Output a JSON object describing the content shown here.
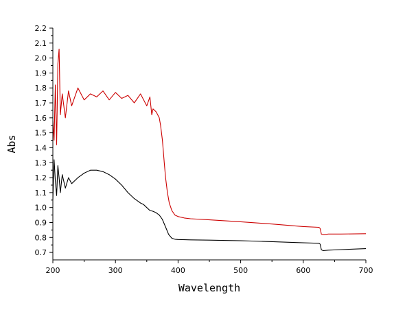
{
  "chart_data": {
    "type": "line",
    "xlabel": "Wavelength",
    "ylabel": "Abs",
    "xlim": [
      200,
      700
    ],
    "ylim": [
      0.65,
      2.2
    ],
    "grid": false,
    "legend": "none",
    "x_ticks": [
      200,
      300,
      400,
      500,
      600,
      700
    ],
    "y_ticks": [
      0.7,
      0.8,
      0.9,
      1.0,
      1.1,
      1.2,
      1.3,
      1.4,
      1.5,
      1.6,
      1.7,
      1.8,
      1.9,
      2.0,
      2.1,
      2.2
    ],
    "y_tick_labels": [
      "0.7",
      "0.8",
      "0.9",
      "1.0",
      "1.1",
      "1.2",
      "1.3",
      "1.4",
      "1.5",
      "1.6",
      "1.7",
      "1.8",
      "1.9",
      "2.0",
      "2.1",
      "2.2"
    ],
    "series": [
      {
        "color": "#cc0000",
        "x": [
          200,
          202,
          204,
          206,
          208,
          210,
          212,
          215,
          220,
          225,
          230,
          240,
          250,
          260,
          270,
          280,
          290,
          300,
          310,
          320,
          330,
          340,
          350,
          355,
          358,
          360,
          365,
          370,
          372,
          375,
          378,
          380,
          383,
          386,
          390,
          395,
          400,
          410,
          420,
          450,
          500,
          550,
          600,
          625,
          627,
          629,
          632,
          640,
          660,
          700
        ],
        "y": [
          1.58,
          1.45,
          1.82,
          1.42,
          1.96,
          2.06,
          1.62,
          1.76,
          1.6,
          1.78,
          1.68,
          1.8,
          1.72,
          1.76,
          1.74,
          1.78,
          1.72,
          1.77,
          1.73,
          1.75,
          1.7,
          1.76,
          1.68,
          1.74,
          1.62,
          1.66,
          1.64,
          1.6,
          1.55,
          1.45,
          1.3,
          1.2,
          1.1,
          1.03,
          0.98,
          0.95,
          0.94,
          0.93,
          0.925,
          0.918,
          0.905,
          0.89,
          0.873,
          0.868,
          0.86,
          0.822,
          0.818,
          0.823,
          0.823,
          0.825
        ]
      },
      {
        "color": "#000000",
        "x": [
          200,
          202,
          204,
          206,
          208,
          210,
          212,
          215,
          220,
          225,
          230,
          240,
          250,
          260,
          270,
          280,
          290,
          300,
          310,
          320,
          330,
          340,
          345,
          350,
          355,
          360,
          365,
          370,
          375,
          380,
          385,
          390,
          395,
          400,
          420,
          450,
          500,
          550,
          600,
          625,
          627,
          629,
          632,
          640,
          660,
          700
        ],
        "y": [
          1.05,
          1.32,
          1.18,
          1.08,
          1.28,
          1.2,
          1.1,
          1.22,
          1.13,
          1.2,
          1.16,
          1.2,
          1.23,
          1.25,
          1.25,
          1.24,
          1.22,
          1.19,
          1.15,
          1.1,
          1.06,
          1.03,
          1.02,
          1.0,
          0.98,
          0.975,
          0.965,
          0.95,
          0.92,
          0.87,
          0.82,
          0.795,
          0.788,
          0.786,
          0.784,
          0.782,
          0.778,
          0.772,
          0.764,
          0.761,
          0.755,
          0.717,
          0.712,
          0.715,
          0.719,
          0.725
        ]
      }
    ]
  }
}
